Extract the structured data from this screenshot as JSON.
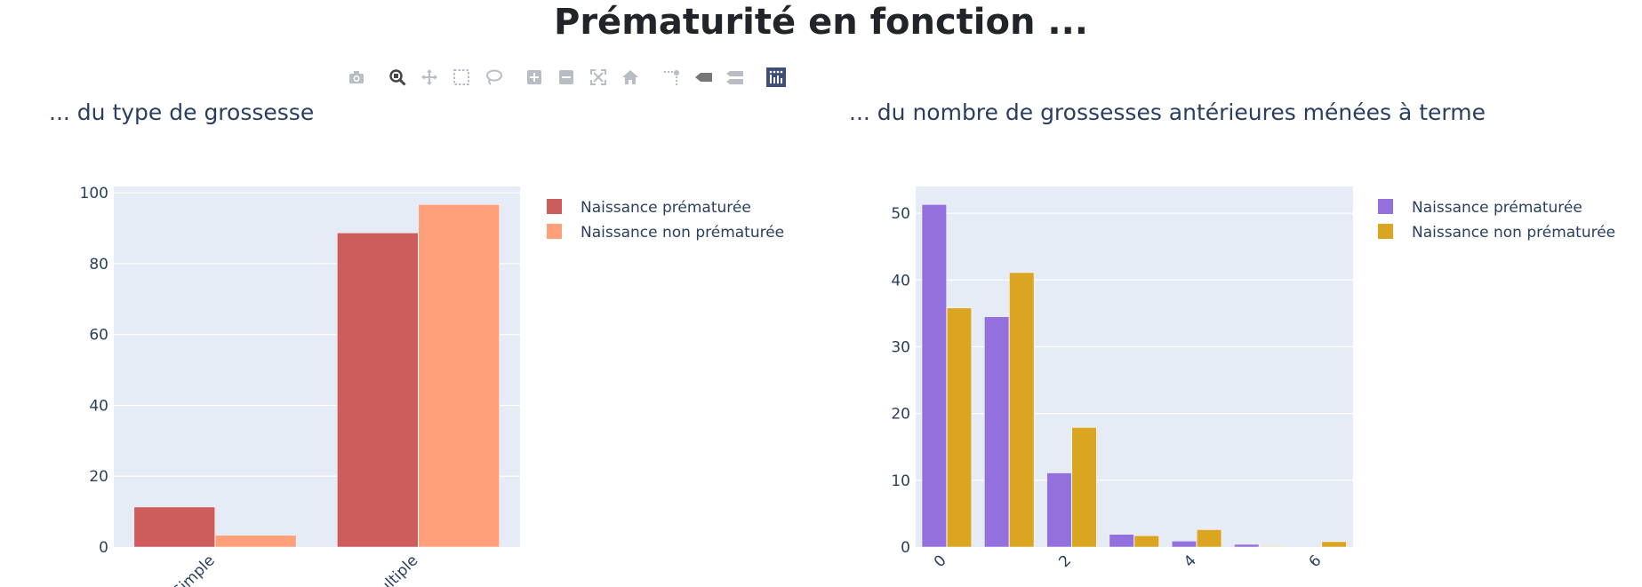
{
  "page": {
    "title": "Prématurité en fonction ..."
  },
  "modebar": {
    "buttons": [
      {
        "icon": "camera-icon",
        "group": 1
      },
      {
        "icon": "zoom-icon",
        "group": 2,
        "active": true
      },
      {
        "icon": "pan-icon",
        "group": 2
      },
      {
        "icon": "box-select-icon",
        "group": 2
      },
      {
        "icon": "lasso-select-icon",
        "group": 2
      },
      {
        "icon": "zoom-in-icon",
        "group": 3
      },
      {
        "icon": "zoom-out-icon",
        "group": 3
      },
      {
        "icon": "autoscale-icon",
        "group": 3
      },
      {
        "icon": "reset-axes-icon",
        "group": 3
      },
      {
        "icon": "spike-lines-icon",
        "group": 4
      },
      {
        "icon": "hover-closest-icon",
        "group": 4
      },
      {
        "icon": "hover-compare-icon",
        "group": 4
      },
      {
        "icon": "plotly-logo-icon",
        "group": 5
      }
    ]
  },
  "chart_data": [
    {
      "type": "bar",
      "title": "... du type de grossesse",
      "categories": [
        "Simple",
        "Multiple"
      ],
      "series": [
        {
          "name": "Naissance prématurée",
          "color": "#cd5c5c",
          "values": [
            11.3,
            88.7
          ]
        },
        {
          "name": "Naissance non prématurée",
          "color": "#ffa07a",
          "values": [
            3.3,
            96.7
          ]
        }
      ],
      "ylim": [
        0,
        101.8
      ],
      "yticks": [
        0,
        20,
        40,
        60,
        80,
        100
      ],
      "grid": true,
      "legend": "top-right"
    },
    {
      "type": "bar",
      "title": "... du nombre de grossesses antérieures ménées à terme",
      "x": [
        0,
        1,
        2,
        3,
        4,
        5,
        6
      ],
      "xticks": [
        0,
        2,
        4,
        6
      ],
      "series": [
        {
          "name": "Naissance prématurée",
          "color": "#9370db",
          "values": [
            51.3,
            34.5,
            11.1,
            1.9,
            0.9,
            0.4,
            0.0
          ]
        },
        {
          "name": "Naissance non prématurée",
          "color": "#daa520",
          "values": [
            35.8,
            41.1,
            17.9,
            1.7,
            2.6,
            0.1,
            0.8
          ]
        }
      ],
      "ylim": [
        0,
        54
      ],
      "yticks": [
        0,
        10,
        20,
        30,
        40,
        50
      ],
      "grid": true,
      "legend": "top-right"
    }
  ]
}
